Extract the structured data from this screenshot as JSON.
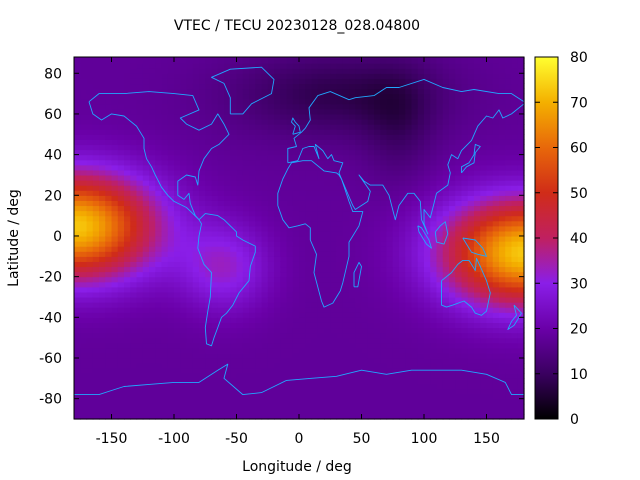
{
  "chart_data": {
    "type": "heatmap",
    "title": "VTEC / TECU 20230128_028.04800",
    "xlabel": "Longitude / deg",
    "ylabel": "Latitude / deg",
    "xlim": [
      -180,
      180
    ],
    "ylim": [
      -90,
      88
    ],
    "x_ticks": [
      "-150",
      "-100",
      "-50",
      "0",
      "50",
      "100",
      "150"
    ],
    "x_tick_values": [
      -150,
      -100,
      -50,
      0,
      50,
      100,
      150
    ],
    "y_ticks": [
      "80",
      "60",
      "40",
      "20",
      "0",
      "-20",
      "-40",
      "-60",
      "-80"
    ],
    "y_tick_values": [
      80,
      60,
      40,
      20,
      0,
      -20,
      -40,
      -60,
      -80
    ],
    "colorbar": {
      "range": [
        0,
        80
      ],
      "ticks": [
        "80",
        "70",
        "60",
        "50",
        "40",
        "30",
        "20",
        "10",
        "0"
      ],
      "tick_values": [
        80,
        70,
        60,
        50,
        40,
        30,
        20,
        10,
        0
      ],
      "colors": [
        "#000000",
        "#3a0060",
        "#6a00a8",
        "#8a1ee8",
        "#c02060",
        "#d02c18",
        "#e8680a",
        "#f4b000",
        "#ffff30"
      ]
    },
    "grid": false,
    "coastline_color": "#20a8ff",
    "grid_resolution": {
      "lon_step": 5,
      "lat_step": 2.5
    },
    "field_model": {
      "base": 18,
      "dark_regions": [
        {
          "lon": 30,
          "lat": 70,
          "amp": -10,
          "sigma_lon": 60,
          "sigma_lat": 15
        },
        {
          "lon": 80,
          "lat": 55,
          "amp": -6,
          "sigma_lon": 20,
          "sigma_lat": 20
        }
      ],
      "bright_regions": [
        {
          "lon": -180,
          "lat": 5,
          "amp": 55,
          "sigma_lon": 45,
          "sigma_lat": 18
        },
        {
          "lon": 180,
          "lat": -8,
          "amp": 55,
          "sigma_lon": 45,
          "sigma_lat": 18
        },
        {
          "lon": -60,
          "lat": -15,
          "amp": 14,
          "sigma_lon": 25,
          "sigma_lat": 15
        }
      ]
    }
  }
}
